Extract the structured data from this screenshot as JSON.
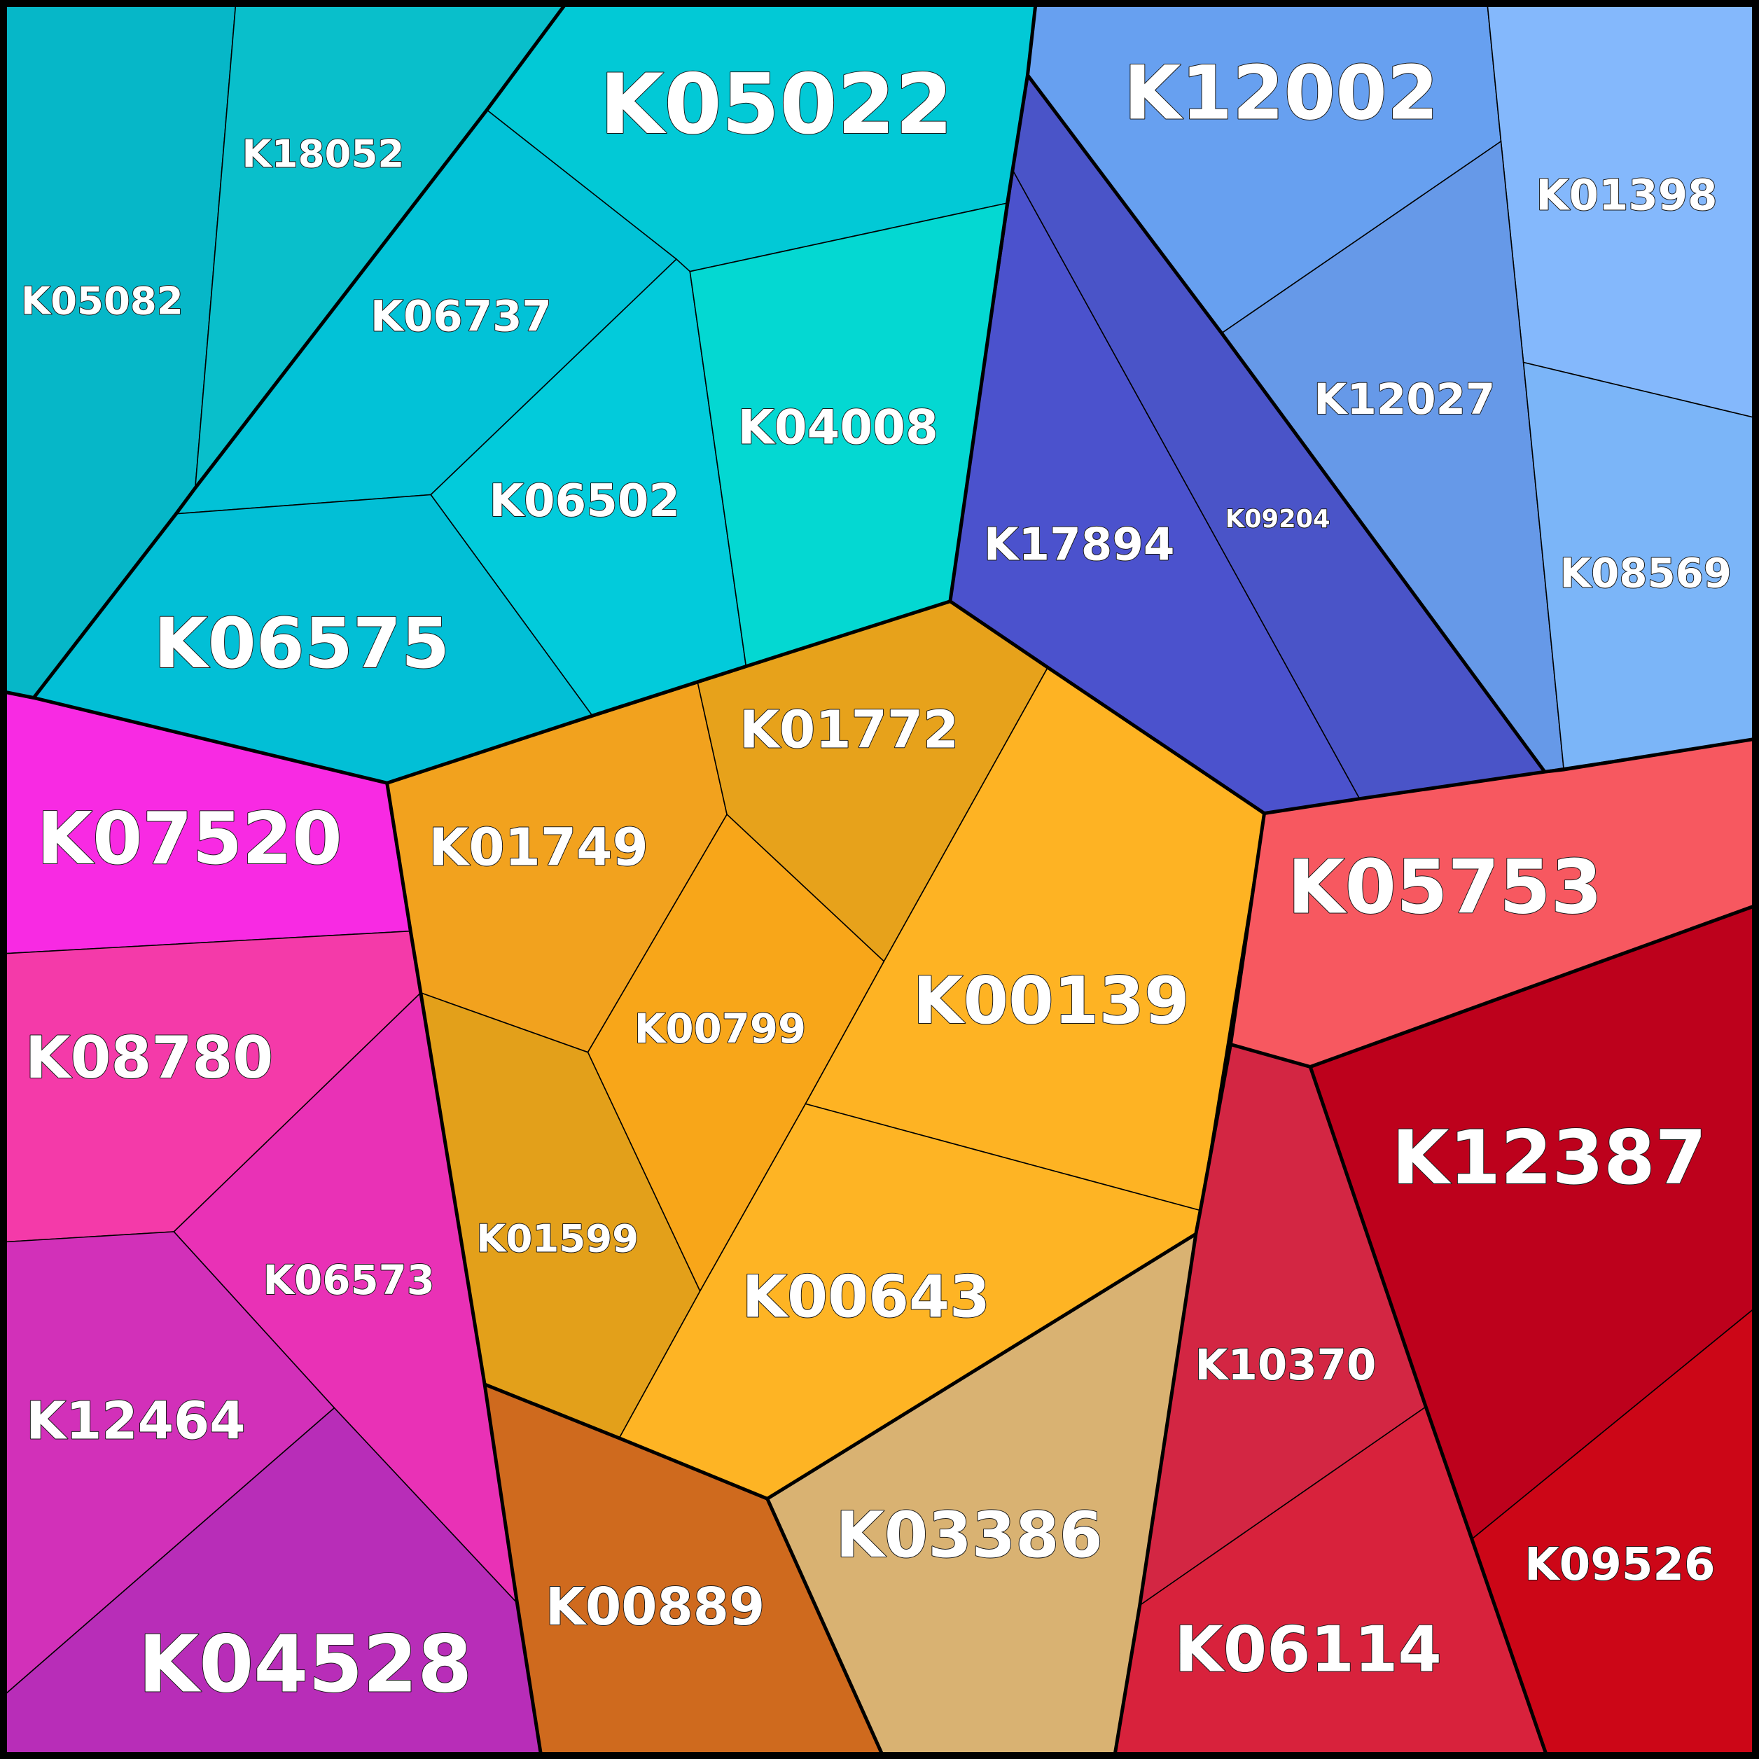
{
  "cells": [
    {
      "id": "K05082",
      "label": "K05082",
      "color": "#06b7c8"
    },
    {
      "id": "K18052",
      "label": "K18052",
      "color": "#09bfcb"
    },
    {
      "id": "K05022",
      "label": "K05022",
      "color": "#02c9d6"
    },
    {
      "id": "K06737",
      "label": "K06737",
      "color": "#02c2d7"
    },
    {
      "id": "K06502",
      "label": "K06502",
      "color": "#02cbdb"
    },
    {
      "id": "K04008",
      "label": "K04008",
      "color": "#04d8d2"
    },
    {
      "id": "K06575",
      "label": "K06575",
      "color": "#02bfd6"
    },
    {
      "id": "K12002",
      "label": "K12002",
      "color": "#67a0f0"
    },
    {
      "id": "K01398",
      "label": "K01398",
      "color": "#84b8fc"
    },
    {
      "id": "K12027",
      "label": "K12027",
      "color": "#6699e8"
    },
    {
      "id": "K08569",
      "label": "K08569",
      "color": "#7bb5f8"
    },
    {
      "id": "K17894",
      "label": "K17894",
      "color": "#4b52cd"
    },
    {
      "id": "K09204",
      "label": "K09204",
      "color": "#4a54c8"
    },
    {
      "id": "K07520",
      "label": "K07520",
      "color": "#f82ae3"
    },
    {
      "id": "K01749",
      "label": "K01749",
      "color": "#f2a21e"
    },
    {
      "id": "K01772",
      "label": "K01772",
      "color": "#e7a21b"
    },
    {
      "id": "K00799",
      "label": "K00799",
      "color": "#f8a619"
    },
    {
      "id": "K00139",
      "label": "K00139",
      "color": "#feb323"
    },
    {
      "id": "K05753",
      "label": "K05753",
      "color": "#f75860"
    },
    {
      "id": "K08780",
      "label": "K08780",
      "color": "#f43aa9"
    },
    {
      "id": "K06573",
      "label": "K06573",
      "color": "#e931b6"
    },
    {
      "id": "K01599",
      "label": "K01599",
      "color": "#e3a01a"
    },
    {
      "id": "K00643",
      "label": "K00643",
      "color": "#feb424"
    },
    {
      "id": "K12387",
      "label": "K12387",
      "color": "#bd011c"
    },
    {
      "id": "K10370",
      "label": "K10370",
      "color": "#d32643"
    },
    {
      "id": "K12464",
      "label": "K12464",
      "color": "#d230b9"
    },
    {
      "id": "K04528",
      "label": "K04528",
      "color": "#b82db8"
    },
    {
      "id": "K00889",
      "label": "K00889",
      "color": "#cf6a1e"
    },
    {
      "id": "K03386",
      "label": "K03386",
      "color": "#d9b272"
    },
    {
      "id": "K06114",
      "label": "K06114",
      "color": "#d8223c"
    },
    {
      "id": "K09526",
      "label": "K09526",
      "color": "#cc0617"
    }
  ]
}
